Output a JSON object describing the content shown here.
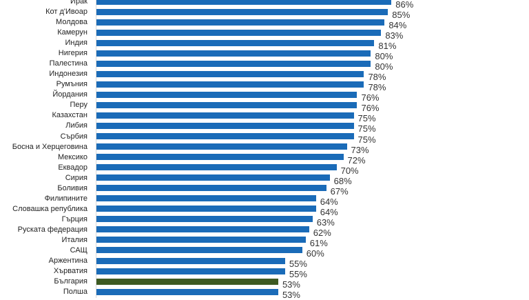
{
  "chart_data": {
    "type": "bar",
    "orientation": "horizontal",
    "categories": [
      "Ирак",
      "Кот д'Ивоар",
      "Молдова",
      "Камерун",
      "Индия",
      "Нигерия",
      "Палестина",
      "Индонезия",
      "Румъния",
      "Йордания",
      "Перу",
      "Казахстан",
      "Либия",
      "Сърбия",
      "Босна и Херцеговина",
      "Мексико",
      "Еквадор",
      "Сирия",
      "Боливия",
      "Филипините",
      "Словашка република",
      "Гърция",
      "Руската федерация",
      "Италия",
      "САЩ",
      "Аржентина",
      "Хърватия",
      "България",
      "Полша"
    ],
    "values": [
      86,
      85,
      84,
      83,
      81,
      80,
      80,
      78,
      78,
      76,
      76,
      75,
      75,
      75,
      73,
      72,
      70,
      68,
      67,
      64,
      64,
      63,
      62,
      61,
      60,
      55,
      55,
      53,
      53
    ],
    "value_labels": [
      "86%",
      "85%",
      "84%",
      "83%",
      "81%",
      "80%",
      "80%",
      "78%",
      "78%",
      "76%",
      "76%",
      "75%",
      "75%",
      "75%",
      "73%",
      "72%",
      "70%",
      "68%",
      "67%",
      "64%",
      "64%",
      "63%",
      "62%",
      "61%",
      "60%",
      "55%",
      "55%",
      "53%",
      "53%"
    ],
    "unit": "%",
    "xlim": [
      0,
      100
    ],
    "grid": false,
    "colors": {
      "default": "#1a6bb8",
      "highlight": "#3d5a22"
    },
    "highlight_category": "България"
  }
}
